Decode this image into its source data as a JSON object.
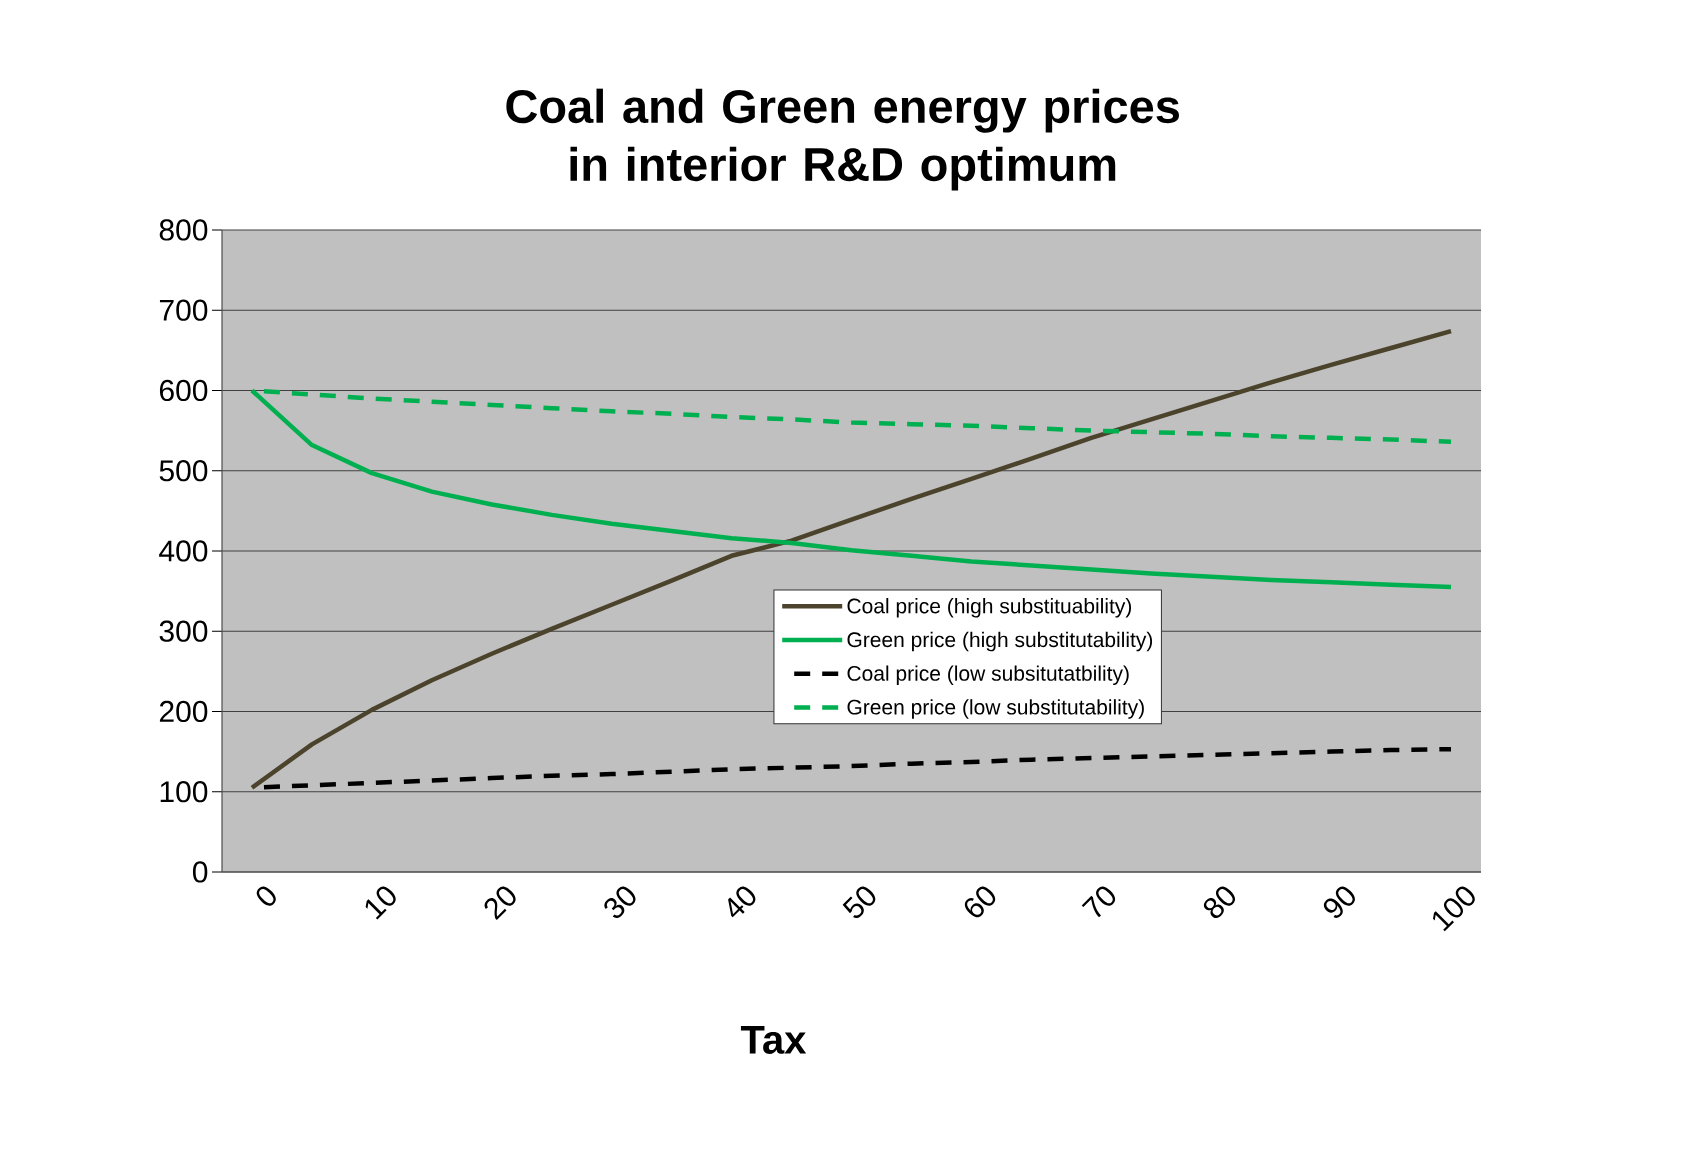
{
  "chart_data": {
    "type": "line",
    "title": "Coal and Green energy prices in interior R&D optimum",
    "xlabel": "Tax",
    "categories": [
      "0",
      null,
      "10",
      null,
      "20",
      null,
      "30",
      null,
      "40",
      null,
      "50",
      null,
      "60",
      null,
      "70",
      null,
      "80",
      null,
      "90",
      null,
      "100"
    ],
    "series": [
      {
        "name": "Coal price (high substituability)",
        "color": "#4b432b",
        "line_style": "solid",
        "values": [
          105,
          159,
          202,
          239,
          272,
          303,
          333,
          363,
          394,
          413,
          439,
          465,
          490,
          515,
          541,
          564,
          587,
          610,
          632,
          653,
          674
        ]
      },
      {
        "name": "Green price (high substitutability)",
        "color": "#00b050",
        "line_style": "solid",
        "values": [
          600,
          532,
          497,
          474,
          458,
          445,
          434,
          425,
          416,
          410,
          401,
          394,
          387,
          382,
          377,
          372,
          368,
          364,
          361,
          358,
          355
        ]
      },
      {
        "name": "Coal price (low subsitutatbility)",
        "color": "#000000",
        "line_style": "dashed",
        "values": [
          105,
          108,
          111,
          114,
          117,
          120,
          122,
          125,
          128,
          130,
          132,
          135,
          137,
          140,
          142,
          144,
          146,
          148,
          150,
          152,
          153
        ]
      },
      {
        "name": "Green price (low substitutability)",
        "color": "#00b050",
        "line_style": "dashed",
        "values": [
          600,
          595,
          590,
          586,
          582,
          578,
          574,
          571,
          567,
          564,
          560,
          558,
          556,
          553,
          550,
          548,
          546,
          543,
          541,
          539,
          536
        ]
      }
    ],
    "ylim": [
      0,
      800
    ],
    "yticks": [
      0,
      100,
      200,
      300,
      400,
      500,
      600,
      700,
      800
    ],
    "grid": "y",
    "legend": "center",
    "marker": "none"
  }
}
